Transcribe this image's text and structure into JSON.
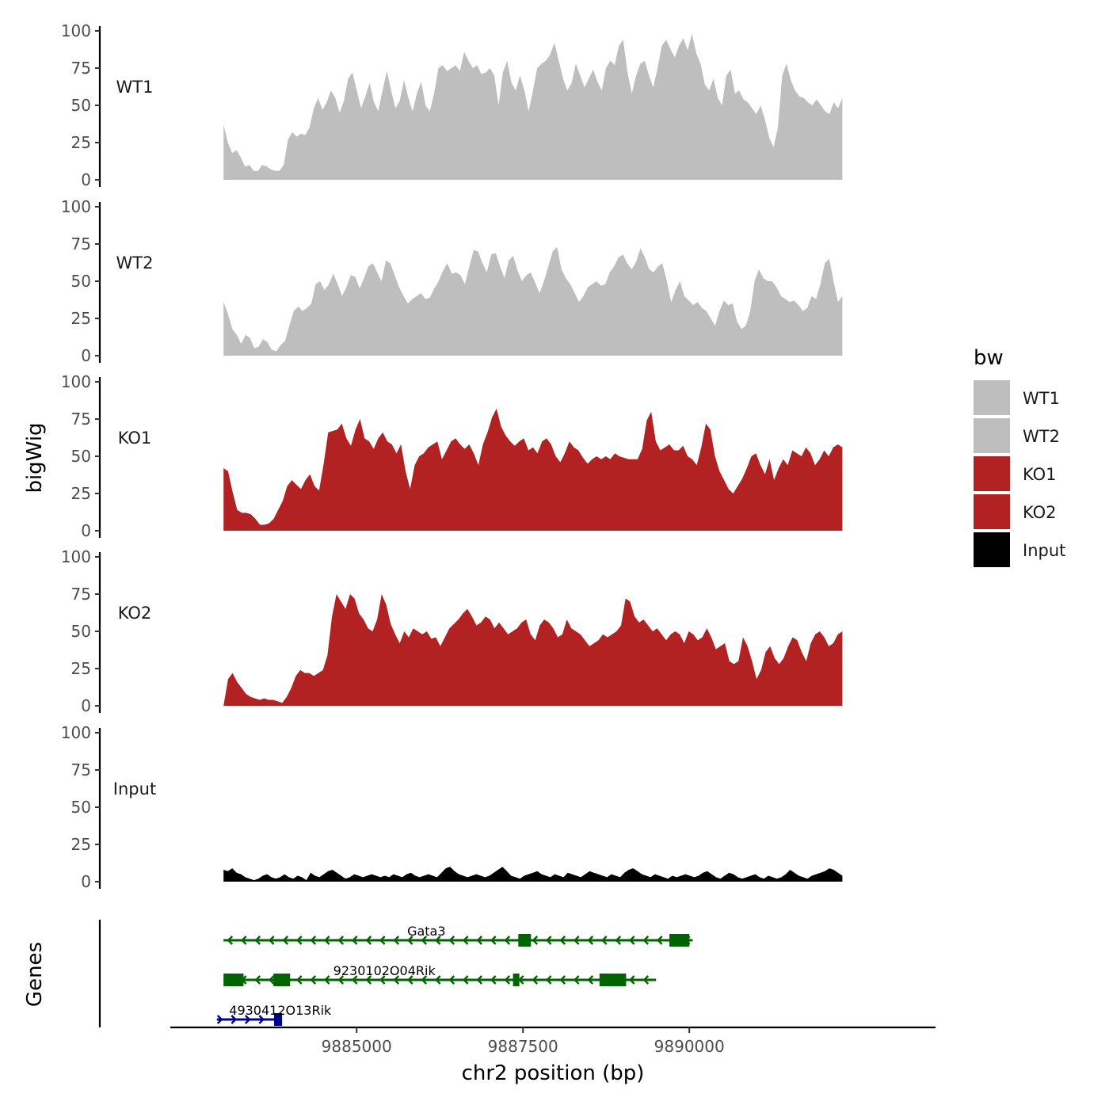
{
  "chart_data": {
    "type": "area",
    "title": "",
    "ylabel": "bigWig",
    "xlabel": "chr2 position (bp)",
    "genes_label": "Genes",
    "ylim": [
      0,
      100
    ],
    "yticks": [
      0,
      25,
      50,
      75,
      100
    ],
    "xlim": [
      9882200,
      9893700
    ],
    "xticks": [
      9885000,
      9887500,
      9890000
    ],
    "x_start": 9883000,
    "x_end": 9892300,
    "legend": {
      "title": "bw",
      "entries": [
        {
          "name": "WT1",
          "color": "#bebebe"
        },
        {
          "name": "WT2",
          "color": "#bebebe"
        },
        {
          "name": "KO1",
          "color": "#b22222"
        },
        {
          "name": "KO2",
          "color": "#b22222"
        },
        {
          "name": "Input",
          "color": "#000000"
        }
      ]
    },
    "series": [
      {
        "name": "WT1",
        "color": "#bebebe",
        "values": [
          37,
          25,
          18,
          20,
          15,
          9,
          10,
          6,
          6,
          10,
          9,
          7,
          6,
          6,
          10,
          27,
          32,
          29,
          31,
          30,
          35,
          48,
          55,
          47,
          52,
          60,
          55,
          45,
          53,
          68,
          72,
          60,
          48,
          56,
          65,
          52,
          46,
          60,
          73,
          60,
          48,
          53,
          67,
          55,
          46,
          58,
          66,
          50,
          46,
          58,
          75,
          77,
          73,
          75,
          77,
          73,
          86,
          80,
          75,
          77,
          71,
          72,
          75,
          70,
          50,
          72,
          80,
          65,
          60,
          70,
          60,
          46,
          60,
          75,
          78,
          80,
          84,
          92,
          80,
          68,
          60,
          65,
          78,
          70,
          62,
          68,
          74,
          66,
          60,
          75,
          80,
          77,
          90,
          94,
          72,
          58,
          70,
          78,
          80,
          70,
          62,
          75,
          90,
          94,
          88,
          82,
          90,
          95,
          87,
          98,
          85,
          78,
          64,
          60,
          68,
          55,
          50,
          70,
          74,
          58,
          60,
          54,
          52,
          48,
          44,
          50,
          40,
          28,
          22,
          35,
          70,
          78,
          67,
          60,
          56,
          55,
          52,
          50,
          54,
          50,
          46,
          44,
          52,
          48,
          55
        ]
      },
      {
        "name": "WT2",
        "color": "#bebebe",
        "values": [
          36,
          28,
          18,
          14,
          8,
          14,
          12,
          5,
          6,
          11,
          9,
          4,
          3,
          7,
          10,
          20,
          30,
          33,
          30,
          32,
          35,
          48,
          50,
          44,
          48,
          55,
          48,
          40,
          46,
          54,
          53,
          45,
          52,
          60,
          62,
          56,
          50,
          64,
          62,
          54,
          46,
          40,
          35,
          38,
          40,
          42,
          38,
          39,
          45,
          50,
          57,
          62,
          55,
          56,
          54,
          48,
          60,
          71,
          70,
          62,
          56,
          68,
          69,
          60,
          52,
          64,
          67,
          57,
          50,
          54,
          56,
          49,
          42,
          50,
          60,
          70,
          73,
          58,
          52,
          48,
          42,
          36,
          40,
          46,
          48,
          50,
          47,
          48,
          56,
          60,
          66,
          68,
          62,
          58,
          63,
          72,
          66,
          58,
          56,
          60,
          62,
          50,
          36,
          44,
          50,
          40,
          37,
          34,
          36,
          32,
          30,
          25,
          20,
          30,
          37,
          34,
          35,
          23,
          18,
          20,
          30,
          50,
          58,
          52,
          50,
          50,
          46,
          40,
          38,
          36,
          37,
          34,
          30,
          32,
          40,
          38,
          48,
          62,
          65,
          50,
          36,
          40
        ]
      },
      {
        "name": "KO1",
        "color": "#b22222",
        "values": [
          42,
          40,
          26,
          14,
          12,
          12,
          11,
          8,
          4,
          4,
          5,
          8,
          14,
          20,
          30,
          34,
          31,
          28,
          34,
          38,
          30,
          27,
          45,
          66,
          67,
          68,
          72,
          62,
          57,
          68,
          75,
          62,
          60,
          55,
          62,
          66,
          60,
          58,
          52,
          58,
          40,
          28,
          44,
          50,
          52,
          56,
          58,
          60,
          48,
          54,
          60,
          62,
          58,
          55,
          58,
          52,
          44,
          58,
          66,
          76,
          82,
          70,
          64,
          60,
          57,
          60,
          62,
          54,
          56,
          52,
          60,
          62,
          58,
          50,
          46,
          52,
          60,
          56,
          54,
          49,
          45,
          48,
          50,
          48,
          50,
          48,
          52,
          50,
          49,
          48,
          48,
          48,
          55,
          74,
          80,
          60,
          54,
          56,
          58,
          54,
          54,
          57,
          50,
          48,
          44,
          56,
          72,
          68,
          50,
          40,
          34,
          28,
          25,
          30,
          35,
          42,
          50,
          52,
          44,
          38,
          48,
          34,
          42,
          48,
          44,
          54,
          52,
          50,
          56,
          52,
          44,
          48,
          54,
          50,
          56,
          58,
          56
        ]
      },
      {
        "name": "KO2",
        "color": "#b22222",
        "values": [
          0,
          18,
          22,
          16,
          12,
          8,
          6,
          5,
          4,
          5,
          4,
          4,
          3,
          2,
          6,
          12,
          20,
          24,
          22,
          22,
          20,
          22,
          24,
          34,
          60,
          75,
          70,
          65,
          75,
          72,
          62,
          58,
          52,
          50,
          58,
          75,
          68,
          55,
          48,
          42,
          50,
          46,
          52,
          50,
          48,
          50,
          45,
          46,
          40,
          46,
          52,
          55,
          58,
          62,
          65,
          60,
          54,
          56,
          60,
          58,
          52,
          56,
          52,
          48,
          50,
          52,
          56,
          58,
          48,
          44,
          54,
          58,
          56,
          52,
          46,
          48,
          58,
          52,
          50,
          48,
          44,
          40,
          42,
          44,
          48,
          46,
          48,
          50,
          54,
          72,
          70,
          60,
          56,
          58,
          54,
          50,
          52,
          48,
          44,
          48,
          50,
          48,
          42,
          50,
          48,
          44,
          46,
          52,
          46,
          38,
          40,
          42,
          30,
          28,
          30,
          46,
          40,
          30,
          18,
          24,
          36,
          40,
          32,
          28,
          32,
          40,
          46,
          44,
          36,
          30,
          42,
          48,
          50,
          46,
          40,
          42,
          48,
          50
        ]
      },
      {
        "name": "Input",
        "color": "#000000",
        "values": [
          8,
          7,
          9,
          6,
          5,
          3,
          2,
          1,
          2,
          4,
          5,
          3,
          2,
          3,
          5,
          3,
          2,
          4,
          3,
          1,
          6,
          4,
          3,
          5,
          7,
          8,
          6,
          4,
          2,
          3,
          5,
          4,
          3,
          4,
          5,
          4,
          3,
          4,
          3,
          5,
          4,
          3,
          5,
          6,
          4,
          3,
          4,
          5,
          4,
          3,
          6,
          9,
          10,
          7,
          5,
          4,
          3,
          4,
          5,
          4,
          3,
          4,
          6,
          8,
          10,
          7,
          4,
          3,
          2,
          4,
          5,
          6,
          7,
          5,
          4,
          3,
          5,
          4,
          3,
          6,
          5,
          4,
          3,
          5,
          7,
          6,
          5,
          4,
          3,
          5,
          4,
          3,
          6,
          8,
          9,
          7,
          5,
          4,
          3,
          5,
          4,
          3,
          2,
          4,
          3,
          4,
          5,
          4,
          3,
          4,
          6,
          7,
          5,
          3,
          2,
          4,
          6,
          5,
          3,
          2,
          3,
          4,
          5,
          3,
          2,
          4,
          3,
          2,
          3,
          5,
          8,
          6,
          4,
          3,
          2,
          4,
          5,
          6,
          7,
          9,
          8,
          6,
          4
        ]
      }
    ],
    "genes": [
      {
        "name": "Gata3",
        "strand": "-",
        "color": "#006400",
        "start": 9883000,
        "end": 9890050,
        "exons": [
          [
            9887430,
            9887620
          ],
          [
            9889700,
            9890000
          ]
        ],
        "row": 0
      },
      {
        "name": "9230102O04Rik",
        "strand": "-",
        "color": "#006400",
        "start": 9883000,
        "end": 9889500,
        "exons": [
          [
            9883000,
            9883300
          ],
          [
            9883750,
            9884000
          ],
          [
            9887350,
            9887420
          ],
          [
            9888650,
            9889050
          ]
        ],
        "row": 1
      },
      {
        "name": "4930412O13Rik",
        "strand": "+",
        "color": "#00008b",
        "start": 9882900,
        "end": 9883850,
        "exons": [
          [
            9883760,
            9883880
          ]
        ],
        "row": 2
      }
    ]
  }
}
